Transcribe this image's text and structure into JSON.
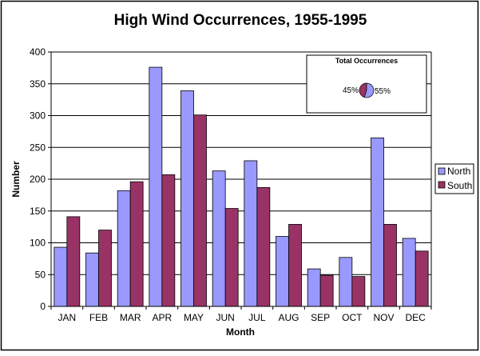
{
  "chart_data": {
    "type": "bar",
    "title": "High Wind Occurrences, 1955-1995",
    "xlabel": "Month",
    "ylabel": "Number",
    "ylim": [
      0,
      400
    ],
    "yticks": [
      "0",
      "50",
      "100",
      "150",
      "200",
      "250",
      "300",
      "350",
      "400"
    ],
    "grid": true,
    "legend_position": "right",
    "categories": [
      "JAN",
      "FEB",
      "MAR",
      "APR",
      "MAY",
      "JUN",
      "JUL",
      "AUG",
      "SEP",
      "OCT",
      "NOV",
      "DEC"
    ],
    "series": [
      {
        "name": "North",
        "color": "#9999ff",
        "values": [
          93,
          84,
          182,
          376,
          339,
          213,
          229,
          110,
          59,
          77,
          265,
          107
        ]
      },
      {
        "name": "South",
        "color": "#993366",
        "values": [
          141,
          120,
          196,
          207,
          301,
          154,
          187,
          129,
          49,
          47,
          129,
          87
        ]
      }
    ],
    "inset": {
      "type": "pie",
      "title": "Total Occurrences",
      "slices": [
        {
          "label": "45%",
          "value": 45,
          "color": "#993366"
        },
        {
          "label": "55%",
          "value": 55,
          "color": "#9999ff"
        }
      ]
    }
  }
}
